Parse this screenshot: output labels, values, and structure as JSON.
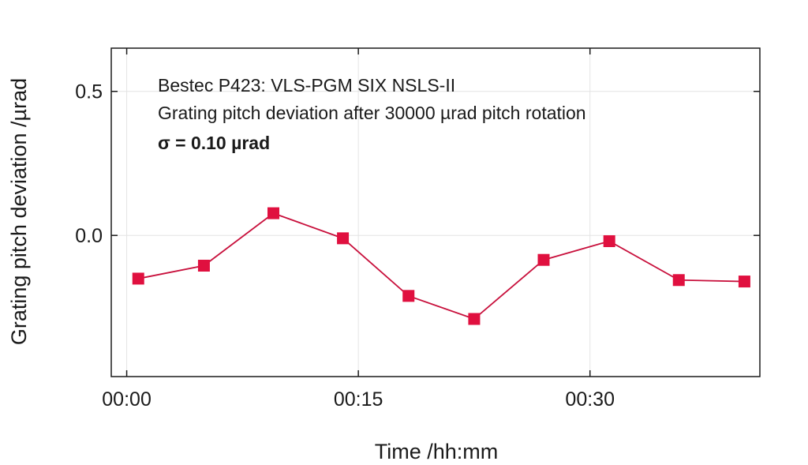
{
  "chart_data": {
    "type": "line",
    "xlabel": "Time /hh:mm",
    "ylabel": "Grating pitch deviation /µrad",
    "xlim": [
      "-00:01",
      "00:41"
    ],
    "ylim": [
      -0.49,
      0.65
    ],
    "x_ticks": [
      "00:00",
      "00:15",
      "00:30"
    ],
    "y_ticks": [
      "0.5",
      "0.0"
    ],
    "y_tick_values": [
      0.5,
      0.0
    ],
    "grid": true,
    "line_color": "#c8103c",
    "marker_color": "#e0103f",
    "marker": "square",
    "x": [
      "00:00:45",
      "00:05:00",
      "00:09:30",
      "00:14:00",
      "00:18:15",
      "00:22:30",
      "00:27:00",
      "00:31:15",
      "00:35:45",
      "00:40:00"
    ],
    "values": [
      -0.15,
      -0.105,
      0.077,
      -0.01,
      -0.21,
      -0.29,
      -0.085,
      -0.02,
      -0.155,
      -0.16
    ],
    "annotations": [
      "Bestec P423: VLS-PGM SIX NSLS-II",
      "Grating pitch deviation after 30000 µrad pitch rotation",
      "σ  = 0.10 µrad"
    ]
  }
}
